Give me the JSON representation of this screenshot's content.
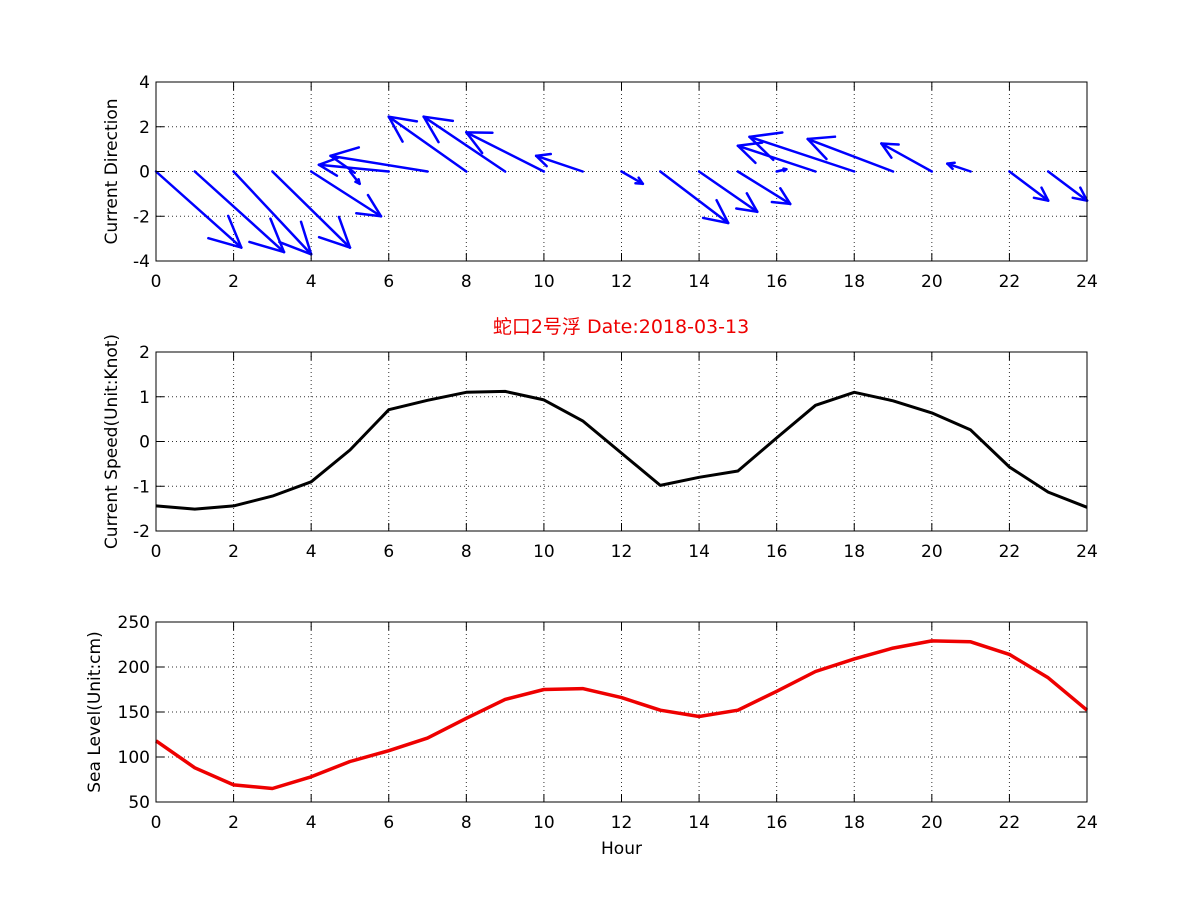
{
  "colors": {
    "quiver": "#0000ff",
    "speed": "#000000",
    "sea_level": "#ee0000",
    "title": "#ee0000"
  },
  "figure_title": "蛇口2号浮   Date:2018-03-13",
  "chart_data": [
    {
      "type": "quiver",
      "ylabel": "Current Direction",
      "xlabel": "",
      "xlim": [
        0,
        24
      ],
      "ylim": [
        -4,
        4
      ],
      "xticks": [
        0,
        2,
        4,
        6,
        8,
        10,
        12,
        14,
        16,
        18,
        20,
        22,
        24
      ],
      "yticks": [
        -4,
        -2,
        0,
        2,
        4
      ],
      "grid": true,
      "vectors": [
        {
          "x": 0,
          "y": 0,
          "u": 2.2,
          "v": -3.4
        },
        {
          "x": 1,
          "y": 0,
          "u": 2.3,
          "v": -3.6
        },
        {
          "x": 2,
          "y": 0,
          "u": 2.0,
          "v": -3.7
        },
        {
          "x": 3,
          "y": 0,
          "u": 2.0,
          "v": -3.4
        },
        {
          "x": 4,
          "y": 0,
          "u": 1.8,
          "v": -2.0
        },
        {
          "x": 5,
          "y": 0,
          "u": 0.25,
          "v": -0.55
        },
        {
          "x": 6,
          "y": 0,
          "u": -1.8,
          "v": 0.3
        },
        {
          "x": 7,
          "y": 0,
          "u": -2.5,
          "v": 0.7
        },
        {
          "x": 8,
          "y": 0,
          "u": -2.0,
          "v": 2.45
        },
        {
          "x": 9,
          "y": 0,
          "u": -2.1,
          "v": 2.45
        },
        {
          "x": 10,
          "y": 0,
          "u": -2.0,
          "v": 1.75
        },
        {
          "x": 11,
          "y": 0,
          "u": -1.2,
          "v": 0.7
        },
        {
          "x": 12,
          "y": 0,
          "u": 0.55,
          "v": -0.55
        },
        {
          "x": 13,
          "y": 0,
          "u": 1.75,
          "v": -2.3
        },
        {
          "x": 14,
          "y": 0,
          "u": 1.5,
          "v": -1.8
        },
        {
          "x": 15,
          "y": 0,
          "u": 1.35,
          "v": -1.45
        },
        {
          "x": 16,
          "y": 0,
          "u": 0.25,
          "v": 0.1
        },
        {
          "x": 17,
          "y": 0,
          "u": -2.0,
          "v": 1.15
        },
        {
          "x": 18,
          "y": 0,
          "u": -2.7,
          "v": 1.55
        },
        {
          "x": 19,
          "y": 0,
          "u": -2.2,
          "v": 1.45
        },
        {
          "x": 20,
          "y": 0,
          "u": -1.3,
          "v": 1.25
        },
        {
          "x": 21,
          "y": 0,
          "u": -0.6,
          "v": 0.35
        },
        {
          "x": 22,
          "y": 0,
          "u": 1.0,
          "v": -1.3
        },
        {
          "x": 23,
          "y": 0,
          "u": 1.0,
          "v": -1.3
        }
      ]
    },
    {
      "type": "line",
      "ylabel": "Current Speed(Unit:Knot)",
      "xlabel": "",
      "xlim": [
        0,
        24
      ],
      "ylim": [
        -2,
        2
      ],
      "xticks": [
        0,
        2,
        4,
        6,
        8,
        10,
        12,
        14,
        16,
        18,
        20,
        22,
        24
      ],
      "yticks": [
        -2,
        -1,
        0,
        1,
        2
      ],
      "grid": true,
      "x": [
        0,
        1,
        2,
        3,
        4,
        5,
        6,
        7,
        8,
        9,
        10,
        11,
        12,
        13,
        14,
        15,
        16,
        17,
        18,
        19,
        20,
        21,
        22,
        23,
        24
      ],
      "y": [
        -1.44,
        -1.51,
        -1.44,
        -1.22,
        -0.9,
        -0.19,
        0.71,
        0.92,
        1.1,
        1.12,
        0.93,
        0.46,
        -0.26,
        -0.98,
        -0.8,
        -0.66,
        0.08,
        0.81,
        1.1,
        0.91,
        0.64,
        0.26,
        -0.57,
        -1.13,
        -1.47
      ]
    },
    {
      "type": "line",
      "ylabel": "Sea Level(Unit:cm)",
      "xlabel": "Hour",
      "xlim": [
        0,
        24
      ],
      "ylim": [
        50,
        250
      ],
      "xticks": [
        0,
        2,
        4,
        6,
        8,
        10,
        12,
        14,
        16,
        18,
        20,
        22,
        24
      ],
      "yticks": [
        50,
        100,
        150,
        200,
        250
      ],
      "grid": true,
      "x": [
        0,
        1,
        2,
        3,
        4,
        5,
        6,
        7,
        8,
        9,
        10,
        11,
        12,
        13,
        14,
        15,
        16,
        17,
        18,
        19,
        20,
        21,
        22,
        23,
        24
      ],
      "y": [
        118,
        88,
        69,
        65,
        78,
        95,
        107,
        121,
        143,
        164,
        175,
        176,
        166,
        152,
        145,
        152,
        173,
        195,
        209,
        221,
        229,
        228,
        214,
        188,
        152
      ]
    }
  ]
}
